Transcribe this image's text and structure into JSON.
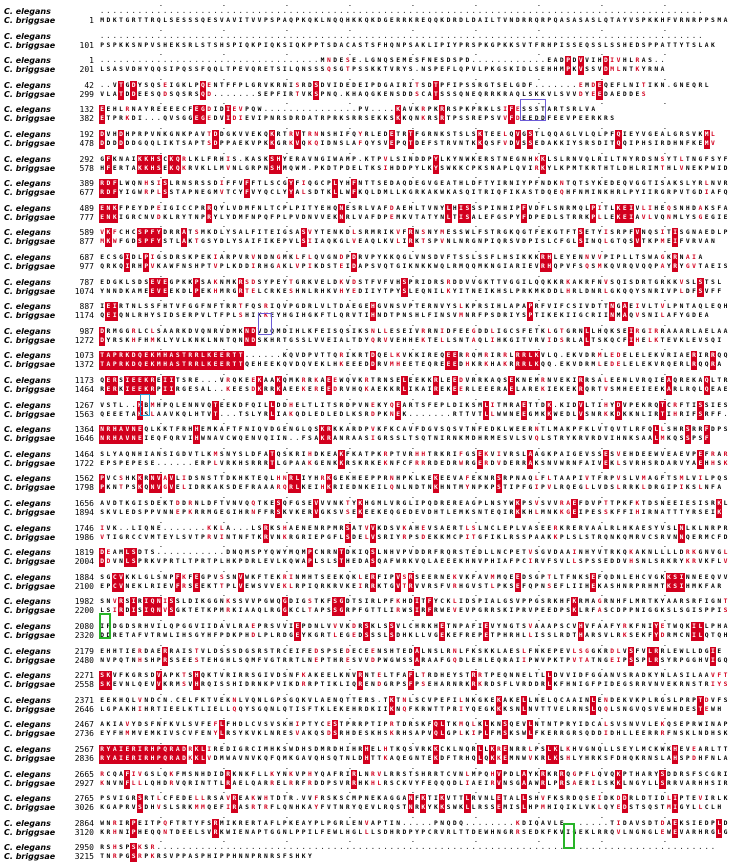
{
  "species": [
    "C. elegans",
    "C. briggsae"
  ],
  "blocks": [
    {
      "n1": "",
      "n2": "1",
      "s1": "................................................................................................",
      "s2": "MDKTGRTTRQLSESSSQESVAVITVVPSPAQPKQKLNQQHKKQKDGERRKREQQKDRDLDAILTVNDRRQRPQASASASLQTAYVSPKKHFVRNRPPSMAV"
    },
    {
      "n1": "",
      "n2": "101",
      "s1": "................................................................................................",
      "s2": "PSPKKSNPVSHEKSRLSTSHSPIQKPIQKSIQKPPTSDACASTSFHQNPSAKLIPIYPRSPKGPKKSVTFRHPISSEQSSLSSHEDSPPATTYTSLAK"
    },
    {
      "n1": "1",
      "n2": "201",
      "s1": "...................................MNDESE.LGNQSEMESFNESDSPD............EADPDVVIHDIVHLRAS..",
      "s2": "LSASVDHYQQSIPQSSFQQLTPEVQRETSILQNSSSQSGTPSSKKTVRYS.NSPEFLQPVLPKGSKIDLSEHHMPKVSSVDMLNTKYRNA"
    },
    {
      "n1": "42",
      "n2": "299",
      "s1": "..VTGDYSQSEIGKLPQENTFFPLGRVKRNISRDSDVIDEDEIPDGAIRITSDTPFIPSSRGTSELGDF.......EMDEQEFLNITIKN.GNEQRL",
      "s2": "VLATDDEESQDSQSRSQD.......SEPFIRTVKSPNQ.KHAQGKENSDDSCATSSSQNEQRRKRAQLSKKVLSVVDYEEDAEDDES"
    },
    {
      "n1": "132",
      "n2": "382",
      "s1": "EEHLRNAYREEEECFEGDIDIEVPQW...............PV....KAVKRPKRRSPKPRKLSIFESSSTARTSRLVA",
      "s2": "ETPRKDI...QVSGGEGEDVIDIEVIPNRSDRDATRPRKSRRSEKKSKKQNKRSRTPSSREPSVVFDEEDDFEEVPEERKRS"
    },
    {
      "n1": "192",
      "n2": "478",
      "s1": "DVHDHPRPVNKGNKPAVTDDGKVVEKQKRTRVTRNNSHIFQYRLEDETRTFGRNKSTSLSKTEELQVGSTLQQAGLVLQLPFQIEYVGEALGRSVKML",
      "s2": "DDDDDDGQQLIKTSAPTSDPPAEKVPKKGRKVQKQIDNSLAFQYSVEPQTDEFSTRVNTKKQSFVDVSSEDAKKIYSRSDITQQIPHSIRDHNFKEMV"
    },
    {
      "n1": "292",
      "n2": "578",
      "s1": "GFKNAIKKHSCKQRLKLFRHIS.KASKSHYERAVNGIWAMP.KTPVLSINDDPYLKYNWKERSTNEGNHKKLSLRNVQLRILTNYRDSNSYTLTNGFSYFV",
      "s2": "HFERTAKKHSEKQKRVKLLMVNLGRPNSHMQWM.PKDTPDELTKSIHDDPYLKYSWKKCPKSNAPLQVIRKYLKPMTKRTHTLDHLRIMTHLVNEKPWIDF"
    },
    {
      "n1": "389",
      "n2": "677",
      "s1": "RDFLWQNHSISLRNSRSSDIFFVFFTLSCGYFIQGCPLYHFNTTSEDAQDEGVGEATHLDFTYIRNIYPFNDKNTQTSYKEDEQVGGTISAKSLYRLNVRSYF",
      "s2": "RDFYIGWRPLSSTAPNEGMVTCYFVYQCLYYALSDTKLLWFKQLDMLLKGRKAKWKASQITRIQFIKASTDQEQHFNMINKHRLPYIIRGRPVTGDIAFQ"
    },
    {
      "n1": "489",
      "n2": "777",
      "s1": "ENKFPEYDPEIGICCPRRQYLVDMFNLTCPLPITYEHQNESRLVAFDAEHLTVNYLHISSSPINHIPFVDFLSNRMQLPITLKEIVLIHEQSNHDAKSFALAG",
      "s2": "ENKIGRCNVDKLRYTNPRYLYDMFNPQFPLPVDNVVEKNRLVAFDPEMKVTATYNLTISALEFGSPYFDPEDLSTRRKPLLEKEIAVLVQNMLYSGEGIEL"
    },
    {
      "n1": "589",
      "n2": "877",
      "s1": "VKFCHCSPFYDRRATSMKDLYSALFITEIGSASVYTENKDLSRMRIKVFRNSNYMESSWLFSTRGKQGTFEKGTFTSETYISRPFVNQSITISGNAEDLPSVL",
      "s2": "MKWFGDSPFYSTLAKTGSYDLYSAIFIKEPVLSIIAQKGLVEAQLKVLIRKTSPVNLNRGNPIQRSVDPISLCFGLSINQLGTQSVTKPMEIFVRVAN"
    },
    {
      "n1": "687",
      "n2": "977",
      "s1": "ECSGIDLPIGSDRSKPEKIARPVRVNDNGMKLFLQVGNDPDRVPYKKQGLVNSDVFTSSLSSFLHSIKKKRHLEYENNVVPIPLLTSWAGKRNAIA",
      "s2": "QRKQIRHPVKAWFNSHPTVPLKDDIRHGAKLVPIKDSTEIDAPSVQTGIKNKKWQLRMQQMKNGIARIEVRHQPVFSQSMKQVRQVQQPAYRYGVTAEISR"
    },
    {
      "n1": "787",
      "n2": "1074",
      "s1": "EDGKLSDSEVEGPKKPSAKNMKRSDSYPEYTGRKVELDKVDSTFVFVHSPRIDRSRDDVVGKTTVGGILQQKKRKAKRFNVSQISDRTGRKKVSLSTSL",
      "s2": "YNNDKAMEEVEEKDLPEKHMRGRTELCRKESHNLRHKVHYEDIIYTPYSLEQNILKYITNEIKHSLPRKMKDDLHRLDNRLGKQQYSNRIVPLDFSVFF"
    },
    {
      "n1": "887",
      "n2": "1174",
      "s1": "IEIRTNLSSFHTVFGGFNFTRRTFQSRIQVPGDRLVLTDAEGEHGVNSVPTERNVYSLKPRSIHLAPAPRFVIFCSIVDTTNGAEIVLTVLPNTAQLEQHLLS",
      "s2": "QEIQNLRHYSIDSERPVLTFPLSHIKKEYHGIHGKFTLQRVTIHNDTPNSHLFINSVMNRFPSDRIYSPTIKEKIIGCRIINMAQVSNILAFYGDEA"
    },
    {
      "n1": "987",
      "n2": "1272",
      "s1": "DRMGGRLCLSAARKDVQNRVDMKNDVDQMDIHLKFEISQSIKSNLLESEIVRRNIDFEEGDDLIGCSFETKLGTGRNLLHQKSEIRGIRRAAARLAELAAHLH",
      "s2": "DYRSKHFHMKLYVLKNKLNNTQNNDSKHRTGSSLVVEIALTDYQRVVEHHEKTELLSNTAQLIHKGITVRVIDSRLALTSKQCFIHELKTEVKLEVSQI"
    },
    {
      "n1": "1073",
      "n2": "1372",
      "s1": "TAPRKDQEKMHASTRRLKEERTT......KQVDPVTTQRIKRTDQELKVKKIREQEERRQMRIRRLRRLKVLQ.EKVDRMLEDELELEKVRIAERIRRQQ",
      "s2": "TAPRKDQEKMHASTRRLKEERTTQEHEEKQVDQVEKLHKEEEDDRVMHEETEQREEEDHKRKHAKRRRLKQQ.EKVDRMLEDELELEKVRQERLRQQRA"
    },
    {
      "n1": "1173",
      "n2": "1464",
      "s1": "QERSIEEKREIITSRE...VRQKEEKAAKQMKRRKAEEWQVKRTRNSELEEKKRLEEDVRRKAQSEKNEMRNVEKIRRSALEENLVRQIEAQREKAQLTRTK",
      "s2": "RERKIEEKRPIIRGESAL..KEESDKRRKAEEKEREEDRVHQKAEKKRLIKAIREKEERLEEERAELAREKIEKEKRQRTVSMHEEIEEKARLRQLQEAEEFR"
    },
    {
      "n1": "1267",
      "n2": "1563",
      "s1": "VSTL..KBMHPQLENNVQTEEKDFQILLDDHELTLITSRDPVNEKYQEARTSFEPLDIKSMLITMRAETTDK.KIDVLTIHYDVPEKRQTCRFTISSIESNE",
      "s2": "QEEETAKSLAAVKQLHTVT...TSLYRLIAKQDLEDLEDLKSRDPKNEK.......RTTVTLLWWNEEGMKKWEDLVSNRKKDKKNLIRTIHRIFSRFF.DK"
    },
    {
      "n1": "1364",
      "n2": "1646",
      "s1": "NRHAVNEQLKKTFRHHEMKAFTFNIQVDGENGLQSKRKKARDPVKFKCAVFDGVSQSVTNFEDKLWEERNTLMAKPFKLVTQVTLRFQLLSHRSRRFDPSNDT",
      "s2": "NRHAVNEIEQFQRVIHWNAVCWQENVQIIN..FSAKRANRAASIGRSSLTSQTNIRNKMDHRMESVLSVQLSTRYKRVRDVIHNKSAALMKQSSPSF"
    },
    {
      "n1": "1464",
      "n2": "1722",
      "s1": "SLYAQNHIANSIGDVTLKMSNYSLDFATQSKRIHDKEAKFKATPKRPTVRHHTRKRIFGSEKVIVRSLAAGKPAIGEVSSESVEHDEEWVEAEVPEFRAR",
      "s2": "EPSPEPESE......ERPLVRKHSRRRTLGPAAKGENKKRSKRKEKNFCFRRRDEDRWRGERDVDERRAKSNVWRNFAIVEKLSVRHSRDARVYAEHHSKA"
    },
    {
      "n1": "1562",
      "n2": "1798",
      "s1": "PVCSHKKRNVAVLIDSNSTTDKHKTEQLHNRLIYHRKGEKHEEPPRNHPKLKEKEEVAFEKNRSRPNAQLFLTAAPIVTFRPVSLVMAGFTSMLVILPQSP",
      "s2": "PKNTPSKQNVGVELIDRKAKSDEFRAAARQRLKEIHKRIEDNKEILQNLNDTNKHNTMYNPKPSTIPFGIPVLRQEGLLVDSLRRKLDRGIPIKSLNFA"
    },
    {
      "n1": "1656",
      "n2": "1894",
      "s1": "AVDTKGISDEKTDDRNLDFTVNVQQTKESQFGSEVVVNKTYKHGMLVRGLIPQDREREAGPLNSYWKPSVSVVRAEFDVPTTPKFKTDSNEEIESISRKL",
      "s2": "SKVLEDSPPVNNEPKRRMGEGIHRNFFRSKVKERVGKSVSEKEEKEQGEDEVDHTLEMKSNTEQIRKKHLMNKKGEIPESSKFFIHIRNATTTYRSEIK"
    },
    {
      "n1": "1746",
      "n2": "1986",
      "s1": "IVK..LIQNE.......KKLA...LSRKSHAENENRPMRSATVVKDSVKAHEVSAERTLSLNCLEPLVASEERKRERVAALRLHKAESYVSLNLKLNRPRNL",
      "s2": "VTIGRCCVMTEYLSVTPRVINTNFTKRVNKRGRIEPGFLSDELVSRIYRPSDEKKMCPITGFIKLRSSPAAKKPLSLSTRQNKQMRVCSRVNNQERMCFD"
    },
    {
      "n1": "1819",
      "n2": "2004",
      "s1": "DEAMLSDTS...........DNQMSPYQWYMQMPCNRNTDKIQSLNHVPVDDRFRQRSTEDLLNCPETVSGVDAAINHYVTRKQKAKNLLLLDRKGNVGLV",
      "s2": "DDVNLSPRKVPRTLTPRTPLHKPDRLEVLKQWAPLSLSTHEDASQAFWRKVQLAEEEKHNVPHIAFPCIRVFSVLLSPSSEDDVHSNLSRKRYKRVKFLV"
    },
    {
      "n1": "1884",
      "n2": "2100",
      "s1": "SGCVKKLGLSNPFKFEGPVSSNVWKFTEKRINMHTSEEKQKLERFIPVSRSEERNEKVKFAVMMQEEDSGPTLTFNKSEFQDNLEHCVGKKSINNEEQVVQL",
      "s2": "EPCVNEKLRIEVFRSEEKTTPLVEWSVVEKLRPIQRKRVKEIRRKTGVTRVVRSFVRHGVSTLPKSEFQPNSEFLIIHEKASHNRPRHMTKSIHMKFAR"
    },
    {
      "n1": "1982",
      "n2": "2200",
      "s1": "SNVRSIRIQNISSLDIKGGNKSSVVPGWQGDIGSTKFSGDTSIRLPFKHDITFYCKLIDSPIALGSVPPGSRKHFKRMAGRNHFLMRTKYAARSRFIGNTFP",
      "s2": "LSIRDISIQNVSGKTETKPMRKIAAQLRGGKCLTAPSSGRPFGTTLIRWSIRFRWEVEVPGRRSKIPRVPEEDPSKLRFASCDPPNIGGKSLSGISPPISK"
    },
    {
      "n1": "2080",
      "n2": "2320",
      "s1": "IPDGDSRHVILQPGGVIIDAVLRAEPRSVVIEPDNLVVVKDRSKLSSVLCHRKHETNPAFIEVYNGTSVAAAPSCVHVFAAFYRKFNIYETWQKILLPHAR",
      "s2": "DDRETAFVTRWLIHSGYHFPDKPHDLPLRDGEYKGRTLEGEDSSSLSDHKLLVGEKEFREPETPHRHLLISSLRDTHARSVLRKSEKFYDRMCNILQTQH"
    },
    {
      "n1": "2179",
      "n2": "2480",
      "s1": "EHHTIERDAERRAISTVLDSSSDGSRSTRCEIFEDSPSEDECEENSHTEDALNSLRNLFKSKKLAESLFNKEPEVLSGGKRDLVSFVLRRLEWLLDGIE",
      "s2": "NVPQTNHSHPRSSEESTEHGHLSQMFVGTRRTLNEPTHRESVVDPWGWSSARAAFGQDLEHLEQRAIIPWVPKTPVTATNGEIPSSPLRSYRPGGHVIGQ"
    },
    {
      "n1": "2271",
      "n2": "2558",
      "s1": "SKVFKGRSDVAPKTSHQKTVRIRRSGIVDSNFKAKEELKNVRNTELTFAFLTRDHEYSTRRTPEQNNELTLLDVVIDFGGANVSRADKYNLASILAAVFT",
      "s2": "SKEVNLQEVVKRMSVHRQISSHIDRNKPVIKDRRPTIKLIQRENDGRPSFPSEHARNRKRKRDSFLVRDDRLKFHNIGFPIDEGSRRVNVEKRNSTRIYS"
    },
    {
      "n1": "2371",
      "n2": "2646",
      "s1": "EEKHQLVNDCN.CELFKTVEKNLVQNLGPSGQKVLAENQTTERS.TKTNLSCVPEFILNKGKEKAKELLNELQCAAINLENDEKVKPLRGSLPRPTDVFSNG",
      "s2": "LGPAKHIHRTIEELKTLIELLQQYSGQNLQTISFTKLEKEHRDKIIKNQFKRWTTPRIYQEGKKKSNLNVTTVELRNSLQQLSNGVQSVEWHDESTEWH"
    },
    {
      "n1": "2467",
      "n2": "2736",
      "s1": "AKIAVYDSFNFKVLSVFEFLFHDLCVSVSKHIPTYCESTPRRPTIPRTDRSKFQLTKMQLKLKNSQEVLNTNTPRYIDCALSVSNVVLEKQSEPRWINAPR",
      "s2": "EYFHMMVEMKIVSCVFENYLRSYKVKLNRESVAKQSDSRHDESKHSKRHSAPVQLGPLKIPLFMSKSWLFKERRGRSQDDIDHLLEERRRFNSKLNDHSKE"
    },
    {
      "n1": "2567",
      "n2": "2836",
      "s1": "RYAIERIRHPQRADRKLIREDIGRCIMHKSWDHSDMRDHIHRHELHTKQSVRKKCKLNQRLLKRENRRLPSLKLKHVGNQLLSEYLMCKWKHEVEARLTTC",
      "s2": "RYAIERIRHPQRADKKLVDMWAVNVKQFQMKGAVQHSQTNLDHTTKAQEGNTEKDFTRHQLQKKEMNWVKRLKSHLYHRKSFDHQKRNSLAHSPDHFNLA"
    },
    {
      "n1": "2665",
      "n2": "2927",
      "s1": "RCQAFIVGSLQKFMSNHDIDRKNKFLLKYNKVPHYQAFRIRLNRVLRRSTSHRRTCVNLMPQHVPDLAYKRKRRQGPFLQVQKPTHARYSDDRSFSCGRISR",
      "s2": "KNVNFLLLQHDRVQRINTTLRAELQARRELRRFRDDPSVRRHKHLRSCKVYFEQQQDLIAEIRVNSGAAWRLPRSAERILSKKLNGYLLSRRVARHHSIR"
    },
    {
      "n1": "2765",
      "n2": "3026",
      "s1": "PSVIGRSRTLCFEDELLRSAVREAKWHTDTR.VVFRSKSCMPNEKAGGANFKTIKVTTLRVNLETALLSHVFKSRDQSEIDKDDRLDTIDLIPTEVIRLKG",
      "s2": "KGAPRVSDHVSLSRKMMQEFIRASRTRFLQNHKAYFVTNRYQEVLRQSTNRKYKKSWKLLRSSEMISLHPMHIQIKLVKLQYEDSTSQSTMIGYLLCLH"
    },
    {
      "n1": "2864",
      "n2": "3120",
      "s1": "WNRIRPEITPQFTRTYFSRMIKRERTAFLPKEAYPLPGRLENVAPTIN.....PNQDQ........KDIQAVLE.......TIDAVSDTDAEKSIEDPLDIVK",
      "s2": "KRHNIPHEQQNTDEELSVRKWIENAPTGGNLPPILFEWLHGLLLSDHRDPYPCRVRLTTDEWHNGRRSEDKFKVIGEKLRRQVLNGNGLEWEVARHRGLGN"
    },
    {
      "n1": "2950",
      "n2": "3215",
      "s1": "RSHSPSKSR.........................................................................................",
      "s2": "TNRPGSRPKRSVPPASPHIPPHNNPRNRSFSHKY"
    }
  ]
}
